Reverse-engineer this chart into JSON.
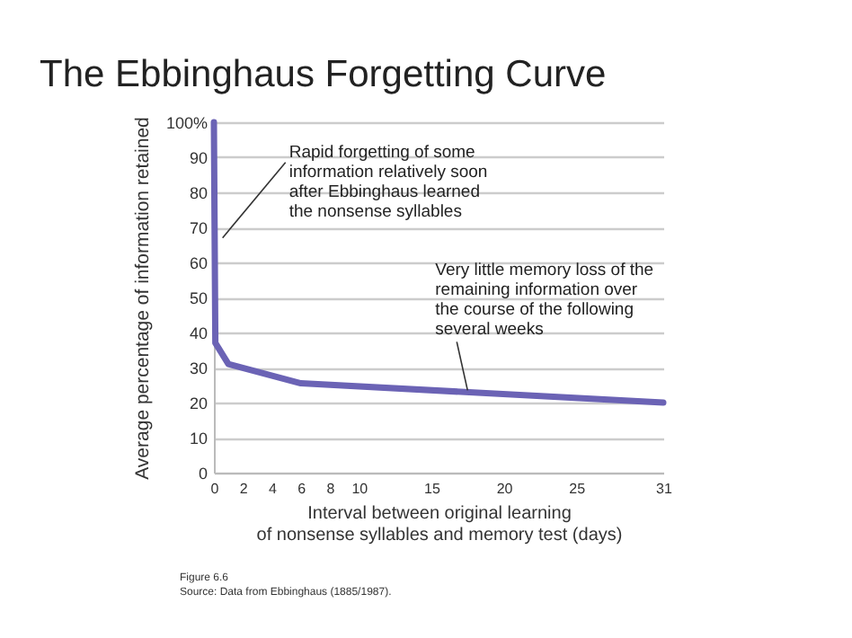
{
  "chart_data": {
    "type": "line",
    "title": "The Ebbinghaus Forgetting Curve",
    "xlabel": "Interval between original learning\nof nonsense syllables and memory test (days)",
    "ylabel": "Average percentage of information retained",
    "x": [
      0,
      0.1,
      1,
      6,
      31
    ],
    "series": [
      {
        "color": "#6b63b5",
        "values": [
          100,
          37,
          31,
          25.5,
          20
        ]
      }
    ],
    "xlim": [
      0,
      31
    ],
    "xticks": [
      0,
      2,
      4,
      6,
      8,
      10,
      15,
      20,
      25,
      31
    ],
    "ylim": [
      0,
      100
    ],
    "yticks": [
      0,
      10,
      20,
      30,
      40,
      50,
      60,
      70,
      80,
      90,
      {
        "value": 100,
        "label": "100%"
      }
    ],
    "grid": "y",
    "marker": "none",
    "line_style": "solid",
    "annotations": [
      {
        "text": "Rapid forgetting of some\ninformation relatively soon\nafter Ebbinghaus learned\nthe nonsense syllables",
        "x": 0.6,
        "y": 67
      },
      {
        "text": "Very little memory loss of the\nremaining information over\nthe course of the following\nseveral weeks",
        "x": 17.5,
        "y": 23.5
      },
      "Figure 6.6",
      "Source: Data from Ebbinghaus (1885/1987)."
    ]
  }
}
